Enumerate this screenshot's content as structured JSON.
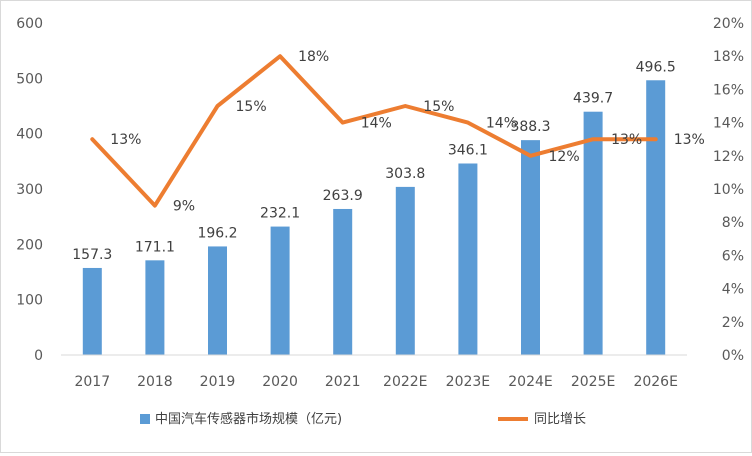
{
  "chart_data": {
    "type": "bar",
    "categories": [
      "2017",
      "2018",
      "2019",
      "2020",
      "2021",
      "2022E",
      "2023E",
      "2024E",
      "2025E",
      "2026E"
    ],
    "series": [
      {
        "name": "中国汽车传感器市场规模（亿元)",
        "type": "bar",
        "axis": "left",
        "color": "#5b9bd5",
        "values": [
          157.3,
          171.1,
          196.2,
          232.1,
          263.9,
          303.8,
          346.1,
          388.3,
          439.7,
          496.5
        ],
        "labels": [
          "157.3",
          "171.1",
          "196.2",
          "232.1",
          "263.9",
          "303.8",
          "346.1",
          "388.3",
          "439.7",
          "496.5"
        ]
      },
      {
        "name": "同比增长",
        "type": "line",
        "axis": "right",
        "color": "#ed7d31",
        "values": [
          13,
          9,
          15,
          18,
          14,
          15,
          14,
          12,
          13,
          13
        ],
        "labels": [
          "13%",
          "9%",
          "15%",
          "18%",
          "14%",
          "15%",
          "14%",
          "12%",
          "13%",
          "13%"
        ]
      }
    ],
    "left_axis": {
      "ylim": [
        0,
        600
      ],
      "ticks": [
        "0",
        "100",
        "200",
        "300",
        "400",
        "500",
        "600"
      ]
    },
    "right_axis": {
      "ylim": [
        0,
        20
      ],
      "ticks": [
        "0%",
        "2%",
        "4%",
        "6%",
        "8%",
        "10%",
        "12%",
        "14%",
        "16%",
        "18%",
        "20%"
      ]
    },
    "grid": false,
    "legend_position": "bottom"
  }
}
